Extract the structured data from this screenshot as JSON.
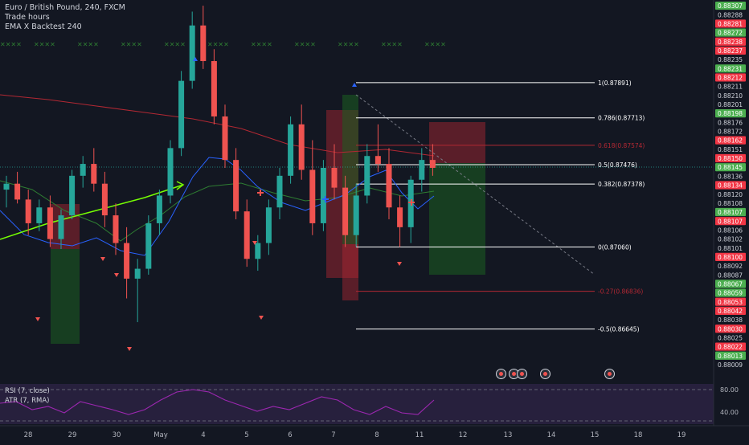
{
  "header": {
    "symbol_line": "Euro / British Pound, 240, FXCM",
    "indicator_1": "Trade hours",
    "indicator_2": "EMA X Backtest 240"
  },
  "oscillator": {
    "rsi_label": "RSI (7, close)",
    "atr_label": "ATR (7, RMA)",
    "scale_labels": [
      "80.00",
      "40.00"
    ]
  },
  "fib_levels": [
    {
      "label": "1(0.87891)",
      "price": 0.87891,
      "color": "#ffffff"
    },
    {
      "label": "0.786(0.87713)",
      "price": 0.87713,
      "color": "#ffffff"
    },
    {
      "label": "0.618(0.87574)",
      "price": 0.87574,
      "color": "#b22833"
    },
    {
      "label": "0.5(0.87476)",
      "price": 0.87476,
      "color": "#ffffff"
    },
    {
      "label": "0.382(0.87378)",
      "price": 0.87378,
      "color": "#ffffff"
    },
    {
      "label": "0(0.87060)",
      "price": 0.8706,
      "color": "#ffffff"
    },
    {
      "label": "-0.27(0.86836)",
      "price": 0.86836,
      "color": "#b22833"
    },
    {
      "label": "-0.5(0.86645)",
      "price": 0.86645,
      "color": "#ffffff"
    }
  ],
  "price_scale": [
    {
      "label": "0.88307",
      "color": "#4caf50"
    },
    {
      "label": "0.88288",
      "color": "#ffffff"
    },
    {
      "label": "0.88281",
      "color": "#f23645"
    },
    {
      "label": "0.88272",
      "color": "#4caf50"
    },
    {
      "label": "0.88238",
      "color": "#f23645"
    },
    {
      "label": "0.88237",
      "color": "#f23645"
    },
    {
      "label": "0.88235",
      "color": "#ffffff"
    },
    {
      "label": "0.88231",
      "color": "#4caf50"
    },
    {
      "label": "0.88212",
      "color": "#f23645"
    },
    {
      "label": "0.88211",
      "color": "#ffffff"
    },
    {
      "label": "0.88210",
      "color": "#ffffff"
    },
    {
      "label": "0.88201",
      "color": "#ffffff"
    },
    {
      "label": "0.88198",
      "color": "#4caf50"
    },
    {
      "label": "0.88176",
      "color": "#ffffff"
    },
    {
      "label": "0.88172",
      "color": "#ffffff"
    },
    {
      "label": "0.88162",
      "color": "#f23645"
    },
    {
      "label": "0.88151",
      "color": "#ffffff"
    },
    {
      "label": "0.88150",
      "color": "#f23645"
    },
    {
      "label": "0.88145",
      "color": "#4caf50"
    },
    {
      "label": "0.88136",
      "color": "#ffffff"
    },
    {
      "label": "0.88134",
      "color": "#f23645"
    },
    {
      "label": "0.88120",
      "color": "#ffffff"
    },
    {
      "label": "0.88108",
      "color": "#ffffff"
    },
    {
      "label": "0.88107",
      "color": "#4caf50"
    },
    {
      "label": "0.88107",
      "color": "#f23645"
    },
    {
      "label": "0.88106",
      "color": "#ffffff"
    },
    {
      "label": "0.88102",
      "color": "#ffffff"
    },
    {
      "label": "0.88101",
      "color": "#ffffff"
    },
    {
      "label": "0.88100",
      "color": "#f23645"
    },
    {
      "label": "0.88092",
      "color": "#ffffff"
    },
    {
      "label": "0.88087",
      "color": "#ffffff"
    },
    {
      "label": "0.88067",
      "color": "#4caf50"
    },
    {
      "label": "0.88059",
      "color": "#4caf50"
    },
    {
      "label": "0.88053",
      "color": "#f23645"
    },
    {
      "label": "0.88042",
      "color": "#f23645"
    },
    {
      "label": "0.88038",
      "color": "#ffffff"
    },
    {
      "label": "0.88030",
      "color": "#f23645"
    },
    {
      "label": "0.88025",
      "color": "#ffffff"
    },
    {
      "label": "0.88022",
      "color": "#f23645"
    },
    {
      "label": "0.88013",
      "color": "#4caf50"
    },
    {
      "label": "0.88009",
      "color": "#ffffff"
    }
  ],
  "time_axis": [
    "28",
    "29",
    "30",
    "May",
    "4",
    "5",
    "6",
    "7",
    "8",
    "11",
    "12",
    "13",
    "14",
    "15",
    "18",
    "19"
  ],
  "marker_text": "✕✕✕✕",
  "chart_data": {
    "type": "candlestick",
    "symbol": "Euro / British Pound",
    "timeframe": "240",
    "source": "FXCM",
    "ylim": [
      0.864,
      0.8826
    ],
    "candles": [
      [
        0.8735,
        0.8742,
        0.8726,
        0.8738
      ],
      [
        0.8738,
        0.8744,
        0.8728,
        0.873
      ],
      [
        0.873,
        0.8735,
        0.8712,
        0.8718
      ],
      [
        0.8718,
        0.873,
        0.8714,
        0.8726
      ],
      [
        0.8726,
        0.8732,
        0.8706,
        0.871
      ],
      [
        0.871,
        0.8725,
        0.8705,
        0.8722
      ],
      [
        0.8722,
        0.8745,
        0.872,
        0.8742
      ],
      [
        0.8742,
        0.8752,
        0.8736,
        0.8748
      ],
      [
        0.8748,
        0.8756,
        0.8734,
        0.8738
      ],
      [
        0.8738,
        0.8744,
        0.8716,
        0.8722
      ],
      [
        0.8722,
        0.8728,
        0.8702,
        0.8708
      ],
      [
        0.8708,
        0.8716,
        0.868,
        0.869
      ],
      [
        0.869,
        0.87,
        0.8668,
        0.8695
      ],
      [
        0.8695,
        0.8722,
        0.8692,
        0.8718
      ],
      [
        0.8718,
        0.8735,
        0.8712,
        0.8732
      ],
      [
        0.8732,
        0.876,
        0.8728,
        0.8756
      ],
      [
        0.8756,
        0.8795,
        0.8752,
        0.879
      ],
      [
        0.879,
        0.8825,
        0.8786,
        0.8818
      ],
      [
        0.8818,
        0.8828,
        0.8796,
        0.88
      ],
      [
        0.88,
        0.8806,
        0.8768,
        0.8772
      ],
      [
        0.8772,
        0.8778,
        0.8746,
        0.875
      ],
      [
        0.875,
        0.8756,
        0.872,
        0.8724
      ],
      [
        0.8724,
        0.873,
        0.8696,
        0.87
      ],
      [
        0.87,
        0.8712,
        0.8694,
        0.8708
      ],
      [
        0.8708,
        0.873,
        0.8702,
        0.8726
      ],
      [
        0.8726,
        0.8746,
        0.872,
        0.8742
      ],
      [
        0.8742,
        0.8772,
        0.8738,
        0.8768
      ],
      [
        0.8768,
        0.8778,
        0.874,
        0.8745
      ],
      [
        0.8745,
        0.876,
        0.8712,
        0.8718
      ],
      [
        0.8718,
        0.875,
        0.8714,
        0.8746
      ],
      [
        0.8746,
        0.8758,
        0.873,
        0.8736
      ],
      [
        0.8736,
        0.8742,
        0.8706,
        0.8712
      ],
      [
        0.8712,
        0.8738,
        0.8706,
        0.8732
      ],
      [
        0.8732,
        0.8758,
        0.8728,
        0.8752
      ],
      [
        0.8752,
        0.8768,
        0.8744,
        0.8748
      ],
      [
        0.8748,
        0.8756,
        0.872,
        0.8726
      ],
      [
        0.8726,
        0.8732,
        0.8706,
        0.8716
      ],
      [
        0.8716,
        0.8742,
        0.8708,
        0.874
      ],
      [
        0.874,
        0.8756,
        0.8734,
        0.875
      ],
      [
        0.875,
        0.8758,
        0.8742,
        0.8746
      ]
    ]
  }
}
